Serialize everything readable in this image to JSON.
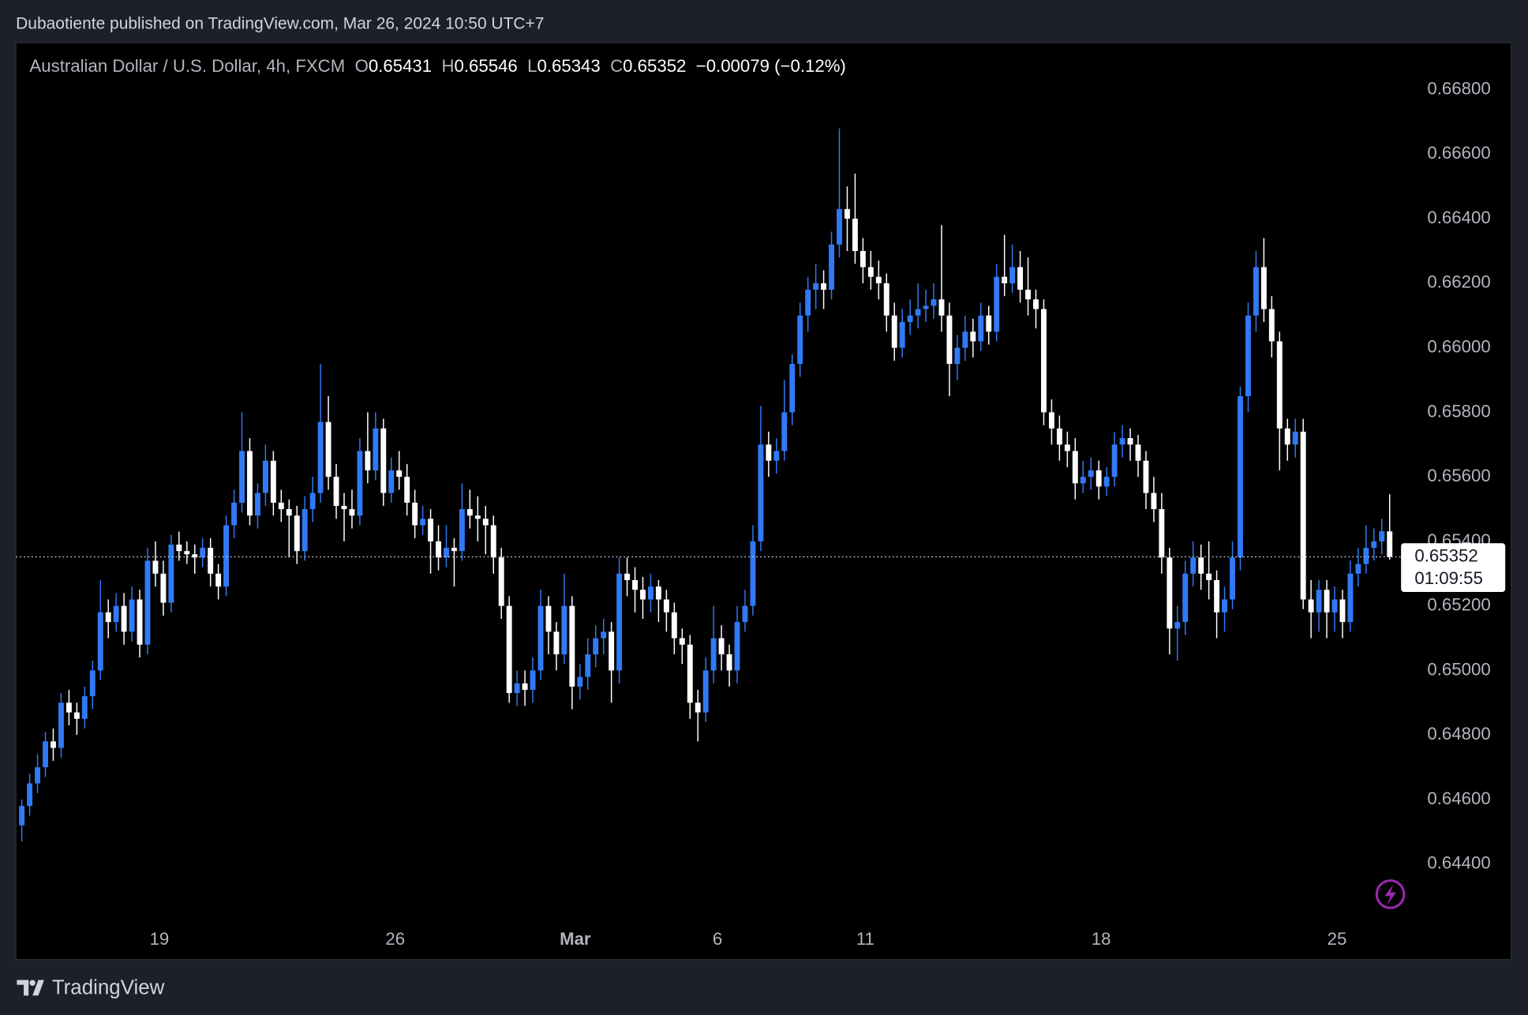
{
  "header": {
    "published": "Dubaotiente published on TradingView.com, Mar 26, 2024 10:50 UTC+7"
  },
  "footer": {
    "brand": "TradingView"
  },
  "chart_data": {
    "type": "candlestick",
    "symbol": "Australian Dollar / U.S. Dollar, 4h, FXCM",
    "legend": [
      {
        "label": "O",
        "value": 0.65431
      },
      {
        "label": "H",
        "value": 0.65546
      },
      {
        "label": "L",
        "value": 0.65343
      },
      {
        "label": "C",
        "value": 0.65352
      }
    ],
    "change": "−0.00079 (−0.12%)",
    "last_price": 0.65352,
    "countdown": "01:09:55",
    "up_color": "#3179f5",
    "down_color": "#ffffff",
    "ylim": [
      0.64225,
      0.66945
    ],
    "yticks": [
      {
        "value": 0.644,
        "label": "0.64400"
      },
      {
        "value": 0.646,
        "label": "0.64600"
      },
      {
        "value": 0.648,
        "label": "0.64800"
      },
      {
        "value": 0.65,
        "label": "0.65000"
      },
      {
        "value": 0.652,
        "label": "0.65200"
      },
      {
        "value": 0.654,
        "label": "0.65400"
      },
      {
        "value": 0.656,
        "label": "0.65600"
      },
      {
        "value": 0.658,
        "label": "0.65800"
      },
      {
        "value": 0.66,
        "label": "0.66000"
      },
      {
        "value": 0.662,
        "label": "0.66200"
      },
      {
        "value": 0.664,
        "label": "0.66400"
      },
      {
        "value": 0.666,
        "label": "0.66600"
      },
      {
        "value": 0.668,
        "label": "0.66800"
      }
    ],
    "xlim": [
      -0.75,
      175.2
    ],
    "xticks": [
      {
        "value": 17.5,
        "label": "19"
      },
      {
        "value": 47.5,
        "label": "26"
      },
      {
        "value": 70.4,
        "label": "Mar"
      },
      {
        "value": 88.5,
        "label": "6"
      },
      {
        "value": 107.3,
        "label": "11"
      },
      {
        "value": 137.3,
        "label": "18"
      },
      {
        "value": 167.3,
        "label": "25"
      }
    ],
    "ohlc": [
      [
        0.6452,
        0.646,
        0.6447,
        0.6458
      ],
      [
        0.6458,
        0.6468,
        0.6455,
        0.6465
      ],
      [
        0.6465,
        0.6474,
        0.6462,
        0.647
      ],
      [
        0.647,
        0.6481,
        0.6467,
        0.6478
      ],
      [
        0.6478,
        0.6482,
        0.6472,
        0.6476
      ],
      [
        0.6476,
        0.6493,
        0.6473,
        0.649
      ],
      [
        0.649,
        0.6494,
        0.6483,
        0.6487
      ],
      [
        0.6487,
        0.649,
        0.648,
        0.6485
      ],
      [
        0.6485,
        0.6495,
        0.6482,
        0.6492
      ],
      [
        0.6492,
        0.6503,
        0.6488,
        0.65
      ],
      [
        0.65,
        0.6528,
        0.6497,
        0.6518
      ],
      [
        0.6518,
        0.6522,
        0.651,
        0.6515
      ],
      [
        0.6515,
        0.6524,
        0.6512,
        0.652
      ],
      [
        0.652,
        0.6524,
        0.6508,
        0.6512
      ],
      [
        0.6512,
        0.6526,
        0.6509,
        0.6522
      ],
      [
        0.6522,
        0.6525,
        0.6504,
        0.6508
      ],
      [
        0.6508,
        0.6538,
        0.6505,
        0.6534
      ],
      [
        0.6534,
        0.654,
        0.6526,
        0.653
      ],
      [
        0.653,
        0.6534,
        0.6517,
        0.6521
      ],
      [
        0.6521,
        0.6542,
        0.6518,
        0.6539
      ],
      [
        0.6539,
        0.6543,
        0.6534,
        0.6537
      ],
      [
        0.6537,
        0.654,
        0.6533,
        0.6536
      ],
      [
        0.6536,
        0.6539,
        0.653,
        0.6535
      ],
      [
        0.6535,
        0.6541,
        0.6532,
        0.6538
      ],
      [
        0.6538,
        0.6541,
        0.6526,
        0.653
      ],
      [
        0.653,
        0.6533,
        0.6522,
        0.6526
      ],
      [
        0.6526,
        0.6548,
        0.6523,
        0.6545
      ],
      [
        0.6545,
        0.6556,
        0.6541,
        0.6552
      ],
      [
        0.6552,
        0.658,
        0.6549,
        0.6568
      ],
      [
        0.6568,
        0.6572,
        0.6545,
        0.6548
      ],
      [
        0.6548,
        0.6558,
        0.6544,
        0.6555
      ],
      [
        0.6555,
        0.657,
        0.6551,
        0.6565
      ],
      [
        0.6565,
        0.6568,
        0.6548,
        0.6552
      ],
      [
        0.6552,
        0.6556,
        0.6546,
        0.655
      ],
      [
        0.655,
        0.6553,
        0.6535,
        0.6548
      ],
      [
        0.6548,
        0.6551,
        0.6533,
        0.6537
      ],
      [
        0.6537,
        0.6554,
        0.6534,
        0.655
      ],
      [
        0.655,
        0.656,
        0.6546,
        0.6555
      ],
      [
        0.6555,
        0.6595,
        0.6552,
        0.6577
      ],
      [
        0.6577,
        0.6585,
        0.6556,
        0.656
      ],
      [
        0.656,
        0.6564,
        0.6547,
        0.6551
      ],
      [
        0.6551,
        0.6555,
        0.654,
        0.655
      ],
      [
        0.655,
        0.6556,
        0.6544,
        0.6548
      ],
      [
        0.6548,
        0.6572,
        0.6545,
        0.6568
      ],
      [
        0.6568,
        0.658,
        0.6558,
        0.6562
      ],
      [
        0.6562,
        0.658,
        0.6559,
        0.6575
      ],
      [
        0.6575,
        0.6578,
        0.6551,
        0.6555
      ],
      [
        0.6555,
        0.6566,
        0.6552,
        0.6562
      ],
      [
        0.6562,
        0.6568,
        0.6556,
        0.656
      ],
      [
        0.656,
        0.6564,
        0.6548,
        0.6552
      ],
      [
        0.6552,
        0.6556,
        0.6541,
        0.6545
      ],
      [
        0.6545,
        0.6551,
        0.6542,
        0.6547
      ],
      [
        0.6547,
        0.655,
        0.653,
        0.654
      ],
      [
        0.654,
        0.6545,
        0.6531,
        0.6535
      ],
      [
        0.6535,
        0.6545,
        0.6532,
        0.6538
      ],
      [
        0.6538,
        0.6541,
        0.6526,
        0.6537
      ],
      [
        0.6537,
        0.6558,
        0.6534,
        0.655
      ],
      [
        0.655,
        0.6556,
        0.6544,
        0.6548
      ],
      [
        0.6548,
        0.6554,
        0.654,
        0.6547
      ],
      [
        0.6547,
        0.6551,
        0.6536,
        0.6545
      ],
      [
        0.6545,
        0.6548,
        0.653,
        0.6535
      ],
      [
        0.6535,
        0.6538,
        0.6516,
        0.652
      ],
      [
        0.652,
        0.6523,
        0.649,
        0.6493
      ],
      [
        0.6493,
        0.65,
        0.6489,
        0.6496
      ],
      [
        0.6496,
        0.65,
        0.6489,
        0.6494
      ],
      [
        0.6494,
        0.6504,
        0.649,
        0.65
      ],
      [
        0.65,
        0.6525,
        0.6497,
        0.652
      ],
      [
        0.652,
        0.6523,
        0.6505,
        0.6512
      ],
      [
        0.6512,
        0.6515,
        0.65,
        0.6505
      ],
      [
        0.6505,
        0.653,
        0.6502,
        0.652
      ],
      [
        0.652,
        0.6523,
        0.6488,
        0.6495
      ],
      [
        0.6495,
        0.6502,
        0.6491,
        0.6498
      ],
      [
        0.6498,
        0.651,
        0.6494,
        0.6505
      ],
      [
        0.6505,
        0.6514,
        0.6501,
        0.651
      ],
      [
        0.651,
        0.6516,
        0.6505,
        0.6512
      ],
      [
        0.6512,
        0.6515,
        0.649,
        0.65
      ],
      [
        0.65,
        0.6535,
        0.6496,
        0.653
      ],
      [
        0.653,
        0.6535,
        0.6523,
        0.6528
      ],
      [
        0.6528,
        0.6532,
        0.6518,
        0.6525
      ],
      [
        0.6525,
        0.6529,
        0.6516,
        0.6522
      ],
      [
        0.6522,
        0.653,
        0.6518,
        0.6526
      ],
      [
        0.6526,
        0.6528,
        0.6515,
        0.6522
      ],
      [
        0.6522,
        0.6525,
        0.6512,
        0.6518
      ],
      [
        0.6518,
        0.6521,
        0.6505,
        0.651
      ],
      [
        0.651,
        0.6513,
        0.6502,
        0.6508
      ],
      [
        0.6508,
        0.6511,
        0.6485,
        0.649
      ],
      [
        0.649,
        0.6494,
        0.6478,
        0.6487
      ],
      [
        0.6487,
        0.6504,
        0.6484,
        0.65
      ],
      [
        0.65,
        0.652,
        0.6496,
        0.651
      ],
      [
        0.651,
        0.6514,
        0.65,
        0.6505
      ],
      [
        0.6505,
        0.6508,
        0.6495,
        0.65
      ],
      [
        0.65,
        0.652,
        0.6496,
        0.6515
      ],
      [
        0.6515,
        0.6525,
        0.6512,
        0.652
      ],
      [
        0.652,
        0.6545,
        0.6517,
        0.654
      ],
      [
        0.654,
        0.6582,
        0.6537,
        0.657
      ],
      [
        0.657,
        0.6574,
        0.656,
        0.6565
      ],
      [
        0.6565,
        0.6572,
        0.6561,
        0.6568
      ],
      [
        0.6568,
        0.659,
        0.6565,
        0.658
      ],
      [
        0.658,
        0.6598,
        0.6576,
        0.6595
      ],
      [
        0.6595,
        0.6614,
        0.6591,
        0.661
      ],
      [
        0.661,
        0.6622,
        0.6605,
        0.6618
      ],
      [
        0.6618,
        0.6626,
        0.6612,
        0.662
      ],
      [
        0.662,
        0.6624,
        0.6612,
        0.6618
      ],
      [
        0.6618,
        0.6636,
        0.6615,
        0.6632
      ],
      [
        0.6632,
        0.6668,
        0.6628,
        0.6643
      ],
      [
        0.6643,
        0.665,
        0.663,
        0.664
      ],
      [
        0.664,
        0.6654,
        0.6626,
        0.663
      ],
      [
        0.663,
        0.6634,
        0.662,
        0.6625
      ],
      [
        0.6625,
        0.663,
        0.6618,
        0.6622
      ],
      [
        0.6622,
        0.6627,
        0.6615,
        0.662
      ],
      [
        0.662,
        0.6623,
        0.6605,
        0.661
      ],
      [
        0.661,
        0.6614,
        0.6596,
        0.66
      ],
      [
        0.66,
        0.6612,
        0.6597,
        0.6608
      ],
      [
        0.6608,
        0.6615,
        0.6604,
        0.661
      ],
      [
        0.661,
        0.662,
        0.6606,
        0.6612
      ],
      [
        0.6612,
        0.6618,
        0.6608,
        0.6613
      ],
      [
        0.6613,
        0.662,
        0.6609,
        0.6615
      ],
      [
        0.6615,
        0.6638,
        0.6605,
        0.661
      ],
      [
        0.661,
        0.6614,
        0.6585,
        0.6595
      ],
      [
        0.6595,
        0.6604,
        0.659,
        0.66
      ],
      [
        0.66,
        0.661,
        0.6596,
        0.6605
      ],
      [
        0.6605,
        0.6609,
        0.6597,
        0.6602
      ],
      [
        0.6602,
        0.6614,
        0.6599,
        0.661
      ],
      [
        0.661,
        0.6613,
        0.6601,
        0.6605
      ],
      [
        0.6605,
        0.6626,
        0.6602,
        0.6622
      ],
      [
        0.6622,
        0.6635,
        0.6616,
        0.662
      ],
      [
        0.662,
        0.6632,
        0.6617,
        0.6625
      ],
      [
        0.6625,
        0.663,
        0.6614,
        0.6618
      ],
      [
        0.6618,
        0.6628,
        0.661,
        0.6615
      ],
      [
        0.6615,
        0.6618,
        0.6606,
        0.6612
      ],
      [
        0.6612,
        0.6615,
        0.6576,
        0.658
      ],
      [
        0.658,
        0.6584,
        0.657,
        0.6575
      ],
      [
        0.6575,
        0.6579,
        0.6565,
        0.657
      ],
      [
        0.657,
        0.6574,
        0.6563,
        0.6568
      ],
      [
        0.6568,
        0.6572,
        0.6553,
        0.6558
      ],
      [
        0.6558,
        0.6565,
        0.6555,
        0.656
      ],
      [
        0.656,
        0.6566,
        0.6556,
        0.6562
      ],
      [
        0.6562,
        0.6565,
        0.6553,
        0.6557
      ],
      [
        0.6557,
        0.6563,
        0.6554,
        0.656
      ],
      [
        0.656,
        0.6574,
        0.6557,
        0.657
      ],
      [
        0.657,
        0.6576,
        0.6566,
        0.6572
      ],
      [
        0.6572,
        0.6575,
        0.6565,
        0.657
      ],
      [
        0.657,
        0.6573,
        0.656,
        0.6565
      ],
      [
        0.6565,
        0.6568,
        0.655,
        0.6555
      ],
      [
        0.6555,
        0.656,
        0.6546,
        0.655
      ],
      [
        0.655,
        0.6555,
        0.653,
        0.6535
      ],
      [
        0.6535,
        0.6538,
        0.6505,
        0.6513
      ],
      [
        0.6513,
        0.652,
        0.6503,
        0.6515
      ],
      [
        0.6515,
        0.6534,
        0.6511,
        0.653
      ],
      [
        0.653,
        0.654,
        0.6526,
        0.6535
      ],
      [
        0.6535,
        0.6539,
        0.6525,
        0.653
      ],
      [
        0.653,
        0.654,
        0.6522,
        0.6528
      ],
      [
        0.6528,
        0.6531,
        0.651,
        0.6518
      ],
      [
        0.6518,
        0.6526,
        0.6512,
        0.6522
      ],
      [
        0.6522,
        0.654,
        0.6519,
        0.6535
      ],
      [
        0.6535,
        0.6588,
        0.6531,
        0.6585
      ],
      [
        0.6585,
        0.6614,
        0.658,
        0.661
      ],
      [
        0.661,
        0.663,
        0.6605,
        0.6625
      ],
      [
        0.6625,
        0.6634,
        0.6608,
        0.6612
      ],
      [
        0.6612,
        0.6616,
        0.6597,
        0.6602
      ],
      [
        0.6602,
        0.6605,
        0.6562,
        0.6575
      ],
      [
        0.6575,
        0.6578,
        0.6565,
        0.657
      ],
      [
        0.657,
        0.6578,
        0.6566,
        0.6574
      ],
      [
        0.6574,
        0.6578,
        0.6519,
        0.6522
      ],
      [
        0.6522,
        0.6528,
        0.651,
        0.6518
      ],
      [
        0.6518,
        0.6528,
        0.6512,
        0.6525
      ],
      [
        0.6525,
        0.6528,
        0.651,
        0.6518
      ],
      [
        0.6518,
        0.6526,
        0.6512,
        0.6522
      ],
      [
        0.6522,
        0.6525,
        0.651,
        0.6515
      ],
      [
        0.6515,
        0.6534,
        0.6512,
        0.653
      ],
      [
        0.653,
        0.6538,
        0.6526,
        0.6533
      ],
      [
        0.6533,
        0.6545,
        0.653,
        0.6538
      ],
      [
        0.6538,
        0.6544,
        0.6534,
        0.654
      ],
      [
        0.654,
        0.6547,
        0.6536,
        0.65431
      ],
      [
        0.65431,
        0.65546,
        0.65343,
        0.65352
      ]
    ]
  }
}
